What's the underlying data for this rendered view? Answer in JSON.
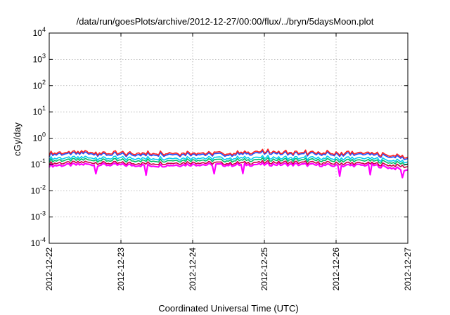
{
  "chart_data": {
    "type": "line",
    "title": "/data/run/goesPlots/archive/2012-12-27/00:00/flux/../bryn/5daysMoon.plot",
    "xlabel": "Coordinated Universal Time (UTC)",
    "ylabel": "cGy/day",
    "yscale": "log",
    "ylim": [
      0.0001,
      10000
    ],
    "xlim": [
      "2012-12-22",
      "2012-12-27"
    ],
    "grid": true,
    "legend": "none",
    "x_ticks": [
      "2012-12-22",
      "2012-12-23",
      "2012-12-24",
      "2012-12-25",
      "2012-12-26",
      "2012-12-27"
    ],
    "y_ticks": [
      {
        "base": "10",
        "exp": "-4"
      },
      {
        "base": "10",
        "exp": "-3"
      },
      {
        "base": "10",
        "exp": "-2"
      },
      {
        "base": "10",
        "exp": "-1"
      },
      {
        "base": "10",
        "exp": "0"
      },
      {
        "base": "10",
        "exp": "1"
      },
      {
        "base": "10",
        "exp": "2"
      },
      {
        "base": "10",
        "exp": "3"
      },
      {
        "base": "10",
        "exp": "4"
      }
    ],
    "x": [
      "2012-12-22",
      "2012-12-22T12:00",
      "2012-12-23",
      "2012-12-23T12:00",
      "2012-12-24",
      "2012-12-24T12:00",
      "2012-12-25",
      "2012-12-25T12:00",
      "2012-12-26",
      "2012-12-26T12:00",
      "2012-12-27"
    ],
    "series": [
      {
        "color": "#ff00ff",
        "values": [
          0.09,
          0.1,
          0.095,
          0.09,
          0.1,
          0.095,
          0.1,
          0.1,
          0.09,
          0.095,
          0.06
        ]
      },
      {
        "color": "#cc0044",
        "values": [
          0.11,
          0.12,
          0.11,
          0.11,
          0.12,
          0.11,
          0.12,
          0.12,
          0.11,
          0.11,
          0.08
        ]
      },
      {
        "color": "#00bb66",
        "values": [
          0.14,
          0.15,
          0.14,
          0.14,
          0.15,
          0.14,
          0.15,
          0.15,
          0.14,
          0.14,
          0.1
        ]
      },
      {
        "color": "#00ccee",
        "values": [
          0.17,
          0.18,
          0.17,
          0.17,
          0.18,
          0.17,
          0.18,
          0.18,
          0.17,
          0.17,
          0.12
        ]
      },
      {
        "color": "#1a4fff",
        "values": [
          0.24,
          0.26,
          0.23,
          0.24,
          0.25,
          0.23,
          0.27,
          0.26,
          0.24,
          0.24,
          0.16
        ]
      },
      {
        "color": "#ff2222",
        "values": [
          0.27,
          0.29,
          0.26,
          0.27,
          0.28,
          0.26,
          0.3,
          0.29,
          0.27,
          0.27,
          0.18
        ]
      }
    ]
  }
}
